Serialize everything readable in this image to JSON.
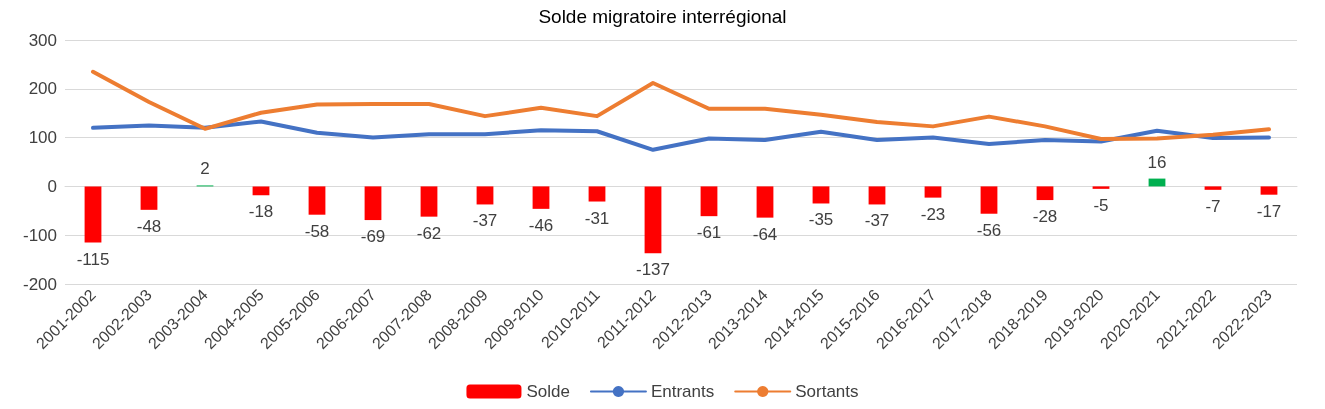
{
  "chart_data": {
    "type": "bar",
    "title": "Solde migratoire interrégional",
    "categories": [
      "2001-2002",
      "2002-2003",
      "2003-2004",
      "2004-2005",
      "2005-2006",
      "2006-2007",
      "2007-2008",
      "2008-2009",
      "2009-2010",
      "2010-2011",
      "2011-2012",
      "2012-2013",
      "2013-2014",
      "2014-2015",
      "2015-2016",
      "2016-2017",
      "2017-2018",
      "2018-2019",
      "2019-2020",
      "2020-2021",
      "2021-2022",
      "2022-2023"
    ],
    "series": [
      {
        "name": "Solde",
        "color": "#ff0000",
        "colors": [
          "#ff0000",
          "#ff0000",
          "#00b050",
          "#ff0000",
          "#ff0000",
          "#ff0000",
          "#ff0000",
          "#ff0000",
          "#ff0000",
          "#ff0000",
          "#ff0000",
          "#ff0000",
          "#ff0000",
          "#ff0000",
          "#ff0000",
          "#ff0000",
          "#ff0000",
          "#ff0000",
          "#ff0000",
          "#00b050",
          "#ff0000",
          "#ff0000"
        ],
        "values": [
          -115,
          -48,
          2,
          -18,
          -58,
          -69,
          -62,
          -37,
          -46,
          -31,
          -137,
          -61,
          -64,
          -35,
          -37,
          -23,
          -56,
          -28,
          -5,
          16,
          -7,
          -17
        ],
        "value_labels": [
          "-115",
          "-48",
          "2",
          "-18",
          "-58",
          "-69",
          "-62",
          "-37",
          "-46",
          "-31",
          "-137",
          "-61",
          "-64",
          "-35",
          "-37",
          "-23",
          "-56",
          "-28",
          "-5",
          "16",
          "-7",
          "-17"
        ]
      },
      {
        "name": "Entrants",
        "type": "line",
        "color": "#4472c4",
        "values": [
          120,
          125,
          120,
          133,
          110,
          100,
          107,
          107,
          115,
          113,
          75,
          98,
          95,
          112,
          95,
          100,
          87,
          95,
          92,
          114,
          99,
          100
        ]
      },
      {
        "name": "Sortants",
        "type": "line",
        "color": "#ed7d31",
        "values": [
          235,
          173,
          118,
          151,
          168,
          169,
          169,
          144,
          161,
          144,
          212,
          159,
          159,
          147,
          132,
          123,
          143,
          123,
          97,
          98,
          106,
          117
        ]
      }
    ],
    "ylim": [
      -200,
      300
    ],
    "yticks": [
      -200,
      -100,
      0,
      100,
      200,
      300
    ],
    "grid": "y",
    "legend": "bottom",
    "marker": "none",
    "line_style": "solid"
  }
}
